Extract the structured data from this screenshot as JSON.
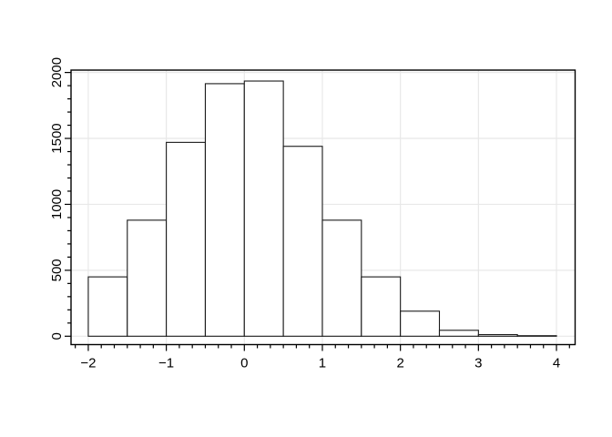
{
  "chart_data": {
    "type": "histogram",
    "title": "",
    "xlabel": "",
    "ylabel": "",
    "bins": {
      "start": -2.0,
      "width": 0.5
    },
    "bin_edges": [
      -2.0,
      -1.5,
      -1.0,
      -0.5,
      0.0,
      0.5,
      1.0,
      1.5,
      2.0,
      2.5,
      3.0,
      3.5,
      4.0
    ],
    "counts": [
      450,
      880,
      1470,
      1915,
      1935,
      1440,
      880,
      450,
      190,
      45,
      12,
      4
    ],
    "x_major_ticks": [
      -2,
      -1,
      0,
      1,
      2,
      3,
      4
    ],
    "x_tick_labels": [
      "−2",
      "−1",
      "0",
      "1",
      "2",
      "3",
      "4"
    ],
    "x_minor_divisions_per_unit": 6,
    "y_major_ticks": [
      0,
      500,
      1000,
      1500,
      2000
    ],
    "y_tick_labels": [
      "0",
      "500",
      "1000",
      "1500",
      "2000"
    ],
    "y_minor_step": 100,
    "x_range": [
      -2.221,
      4.239
    ],
    "y_range": [
      -63.5,
      2018
    ],
    "grid": true,
    "legend_position": "none",
    "colors": {
      "background": "#ffffff",
      "bar_fill": "#ffffff",
      "bar_stroke": "#1a1a1a",
      "grid": "#e8e8e8",
      "frame": "#000000",
      "tick": "#000000",
      "text": "#000000"
    }
  }
}
